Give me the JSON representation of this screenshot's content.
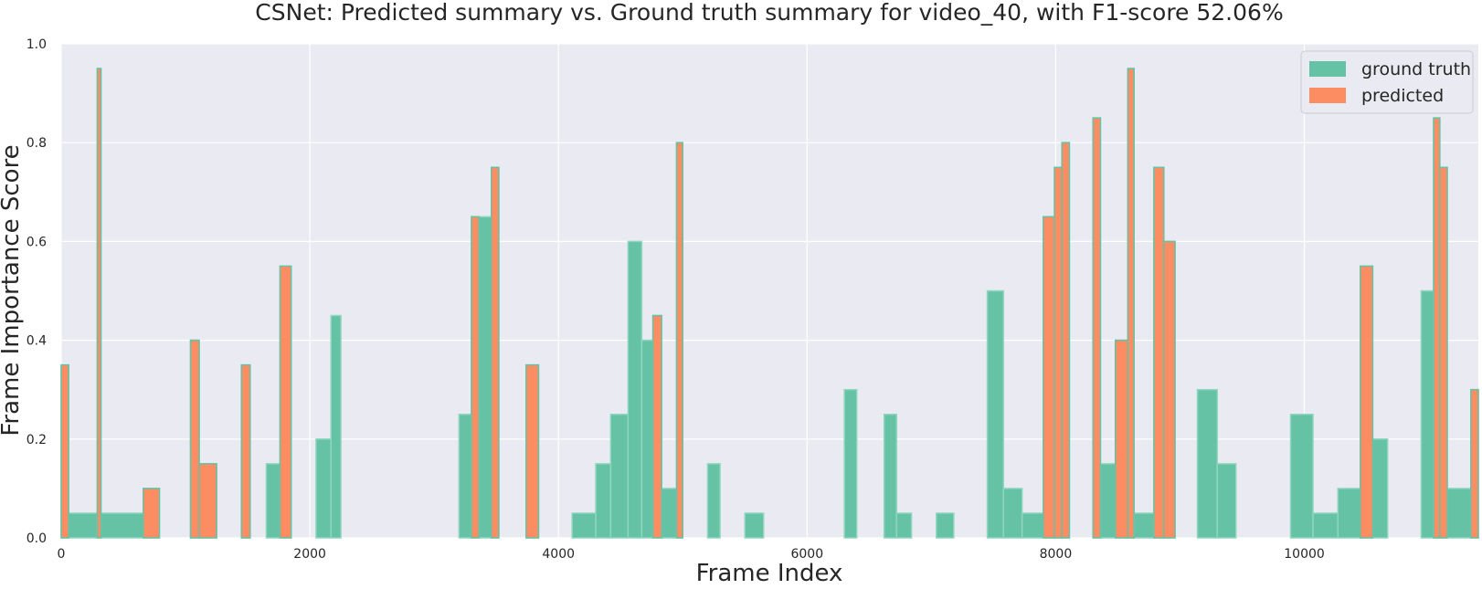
{
  "chart_data": {
    "type": "bar",
    "title": "CSNet: Predicted summary vs. Ground truth summary for video_40, with F1-score 52.06%",
    "xlabel": "Frame Index",
    "ylabel": "Frame Importance Score",
    "xlim": [
      0,
      11400
    ],
    "ylim": [
      0,
      1.0
    ],
    "xticks": [
      0,
      2000,
      4000,
      6000,
      8000,
      10000
    ],
    "yticks": [
      0.0,
      0.2,
      0.4,
      0.6,
      0.8,
      1.0
    ],
    "xtick_labels": [
      "0",
      "2000",
      "4000",
      "6000",
      "8000",
      "10000"
    ],
    "ytick_labels": [
      "0.0",
      "0.2",
      "0.4",
      "0.6",
      "0.8",
      "1.0"
    ],
    "grid": true,
    "legend_position": "top-right",
    "colors": {
      "ground_truth": "#66c2a5",
      "predicted": "#fc8d62",
      "background": "#eaeaf2",
      "grid": "#ffffff"
    },
    "series": [
      {
        "name": "ground truth",
        "segments": [
          [
            0,
            60,
            0.35
          ],
          [
            60,
            290,
            0.05
          ],
          [
            290,
            320,
            0.95
          ],
          [
            320,
            660,
            0.05
          ],
          [
            660,
            790,
            0.1
          ],
          [
            1040,
            1110,
            0.4
          ],
          [
            1110,
            1250,
            0.15
          ],
          [
            1450,
            1520,
            0.35
          ],
          [
            1650,
            1760,
            0.15
          ],
          [
            1760,
            1850,
            0.55
          ],
          [
            2050,
            2170,
            0.2
          ],
          [
            2170,
            2250,
            0.45
          ],
          [
            3200,
            3300,
            0.25
          ],
          [
            3300,
            3360,
            0.65
          ],
          [
            3360,
            3460,
            0.65
          ],
          [
            3460,
            3520,
            0.75
          ],
          [
            3740,
            3840,
            0.35
          ],
          [
            4110,
            4300,
            0.05
          ],
          [
            4300,
            4420,
            0.15
          ],
          [
            4420,
            4560,
            0.25
          ],
          [
            4560,
            4670,
            0.6
          ],
          [
            4670,
            4760,
            0.4
          ],
          [
            4760,
            4830,
            0.45
          ],
          [
            4830,
            4950,
            0.1
          ],
          [
            4950,
            5000,
            0.8
          ],
          [
            5200,
            5300,
            0.15
          ],
          [
            5500,
            5650,
            0.05
          ],
          [
            6300,
            6400,
            0.3
          ],
          [
            6620,
            6720,
            0.25
          ],
          [
            6720,
            6840,
            0.05
          ],
          [
            7040,
            7180,
            0.05
          ],
          [
            7450,
            7580,
            0.5
          ],
          [
            7580,
            7730,
            0.1
          ],
          [
            7730,
            7900,
            0.05
          ],
          [
            7900,
            7990,
            0.65
          ],
          [
            7990,
            8050,
            0.75
          ],
          [
            8050,
            8110,
            0.8
          ],
          [
            8300,
            8360,
            0.85
          ],
          [
            8360,
            8480,
            0.15
          ],
          [
            8480,
            8580,
            0.4
          ],
          [
            8580,
            8630,
            0.95
          ],
          [
            8630,
            8790,
            0.05
          ],
          [
            8790,
            8870,
            0.75
          ],
          [
            8870,
            8960,
            0.6
          ],
          [
            9140,
            9300,
            0.3
          ],
          [
            9300,
            9450,
            0.15
          ],
          [
            9890,
            10070,
            0.25
          ],
          [
            10070,
            10270,
            0.05
          ],
          [
            10270,
            10450,
            0.1
          ],
          [
            10450,
            10550,
            0.55
          ],
          [
            10550,
            10670,
            0.2
          ],
          [
            10940,
            11040,
            0.5
          ],
          [
            11040,
            11090,
            0.85
          ],
          [
            11090,
            11150,
            0.75
          ],
          [
            11150,
            11340,
            0.1
          ],
          [
            11340,
            11400,
            0.3
          ]
        ]
      },
      {
        "name": "predicted",
        "segments": [
          [
            0,
            60,
            0.35
          ],
          [
            290,
            320,
            0.95
          ],
          [
            660,
            790,
            0.1
          ],
          [
            1040,
            1110,
            0.4
          ],
          [
            1110,
            1250,
            0.15
          ],
          [
            1450,
            1520,
            0.35
          ],
          [
            1760,
            1850,
            0.55
          ],
          [
            3300,
            3360,
            0.65
          ],
          [
            3460,
            3520,
            0.75
          ],
          [
            3740,
            3840,
            0.35
          ],
          [
            4760,
            4830,
            0.45
          ],
          [
            4950,
            5000,
            0.8
          ],
          [
            7900,
            7990,
            0.65
          ],
          [
            7990,
            8050,
            0.75
          ],
          [
            8050,
            8110,
            0.8
          ],
          [
            8300,
            8360,
            0.85
          ],
          [
            8480,
            8580,
            0.4
          ],
          [
            8580,
            8630,
            0.95
          ],
          [
            8790,
            8870,
            0.75
          ],
          [
            8870,
            8960,
            0.6
          ],
          [
            10450,
            10550,
            0.55
          ],
          [
            11040,
            11090,
            0.85
          ],
          [
            11090,
            11150,
            0.75
          ],
          [
            11340,
            11400,
            0.3
          ]
        ]
      }
    ]
  }
}
